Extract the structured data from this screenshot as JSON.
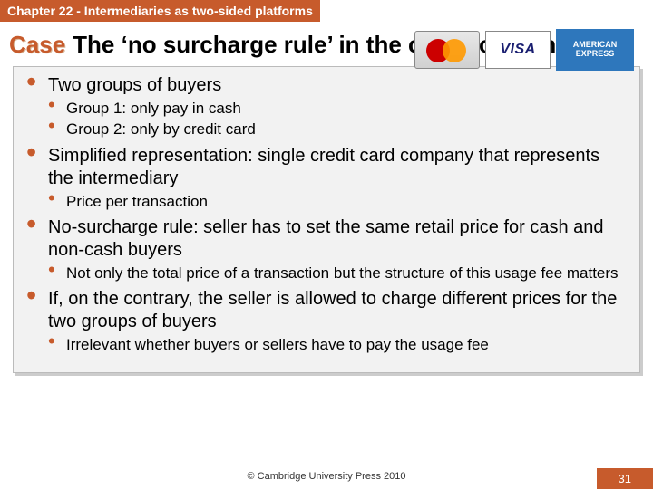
{
  "chapter_bar": "Chapter 22 - Intermediaries as two-sided platforms",
  "case_label": "Case",
  "case_title": "The ‘no surcharge rule’ in the credit card industry",
  "logos": {
    "visa": "VISA",
    "amex_line1": "AMERICAN",
    "amex_line2": "EXPRESS"
  },
  "bullets": [
    {
      "text": "Two groups of buyers",
      "sub": [
        {
          "text": "Group 1: only pay in cash"
        },
        {
          "text": "Group 2: only by credit card"
        }
      ]
    },
    {
      "text": "Simplified representation: single credit card company that represents the intermediary",
      "sub": [
        {
          "text": "Price per transaction"
        }
      ]
    },
    {
      "text": "No-surcharge rule: seller has to set the same retail price for cash and non-cash buyers",
      "sub": [
        {
          "text": "Not only the total price of a transaction but the structure of this usage fee matters"
        }
      ]
    },
    {
      "text": "If, on the contrary, the seller is allowed to charge different prices for the two groups of buyers",
      "sub": [
        {
          "text": "Irrelevant whether buyers or sellers have to pay the usage fee"
        }
      ]
    }
  ],
  "footer": "© Cambridge University Press 2010",
  "page_number": "31",
  "colors": {
    "accent": "#c75b2c",
    "box_bg": "#f2f2f2",
    "box_border": "#bbbbbb",
    "box_shadow": "#cccccc"
  }
}
